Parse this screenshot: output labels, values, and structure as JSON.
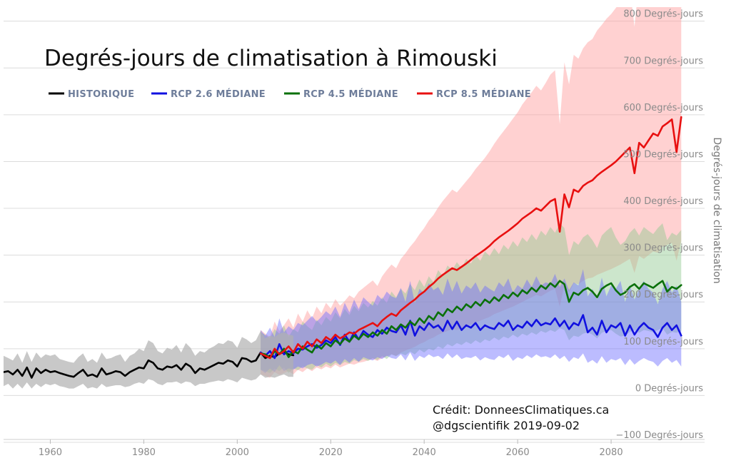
{
  "chart_data": {
    "type": "line",
    "title": "Degrés-jours de climatisation à Rimouski",
    "ylabel": "Degrés-jours de climatisation",
    "xlim": [
      1950,
      2100
    ],
    "ylim": [
      -100,
      830
    ],
    "y_ticks": [
      {
        "value": -100,
        "label": "−100 Degrés-jours"
      },
      {
        "value": 0,
        "label": "0 Degrés-jours"
      },
      {
        "value": 100,
        "label": "100 Degrés-jours"
      },
      {
        "value": 200,
        "label": "200 Degrés-jours"
      },
      {
        "value": 300,
        "label": "300 Degrés-jours"
      },
      {
        "value": 400,
        "label": "400 Degrés-jours"
      },
      {
        "value": 500,
        "label": "500 Degrés-jours"
      },
      {
        "value": 600,
        "label": "600 Degrés-jours"
      },
      {
        "value": 700,
        "label": "700 Degrés-jours"
      },
      {
        "value": 800,
        "label": "800 Degrés-jours"
      }
    ],
    "x_ticks": [
      {
        "value": 1960,
        "label": "1960"
      },
      {
        "value": 1980,
        "label": "1980"
      },
      {
        "value": 2000,
        "label": "2000"
      },
      {
        "value": 2020,
        "label": "2020"
      },
      {
        "value": 2040,
        "label": "2040"
      },
      {
        "value": 2060,
        "label": "2060"
      },
      {
        "value": 2080,
        "label": "2080"
      }
    ],
    "grid": true,
    "legend_position": "top-left",
    "series": [
      {
        "name": "HISTORIQUE",
        "color": "#000000",
        "band_color": "#b0b0b0",
        "x_start": 1950,
        "median": [
          50,
          52,
          45,
          55,
          42,
          60,
          38,
          58,
          48,
          55,
          50,
          52,
          48,
          45,
          42,
          40,
          48,
          55,
          42,
          45,
          40,
          58,
          45,
          48,
          52,
          50,
          42,
          50,
          55,
          60,
          58,
          75,
          70,
          58,
          55,
          62,
          60,
          65,
          55,
          68,
          62,
          48,
          58,
          55,
          60,
          65,
          70,
          68,
          75,
          72,
          62,
          80,
          78,
          72,
          75,
          92,
          80,
          85,
          82,
          90,
          92,
          88,
          86
        ],
        "low": [
          20,
          25,
          15,
          25,
          15,
          28,
          15,
          25,
          18,
          25,
          22,
          25,
          20,
          18,
          15,
          15,
          20,
          25,
          15,
          18,
          15,
          25,
          18,
          20,
          22,
          22,
          18,
          20,
          25,
          28,
          25,
          35,
          32,
          25,
          22,
          28,
          28,
          30,
          25,
          30,
          28,
          20,
          25,
          25,
          28,
          30,
          32,
          30,
          35,
          32,
          28,
          38,
          35,
          32,
          35,
          45,
          38,
          40,
          38,
          42,
          45,
          40,
          40
        ],
        "high": [
          85,
          80,
          75,
          90,
          70,
          95,
          72,
          92,
          80,
          88,
          85,
          88,
          78,
          75,
          72,
          70,
          82,
          90,
          72,
          78,
          70,
          92,
          78,
          80,
          85,
          88,
          72,
          85,
          90,
          100,
          95,
          118,
          112,
          95,
          90,
          102,
          98,
          108,
          92,
          112,
          102,
          85,
          95,
          92,
          100,
          105,
          112,
          110,
          118,
          115,
          102,
          125,
          120,
          112,
          118,
          138,
          122,
          128,
          125,
          132,
          135,
          130,
          128
        ]
      },
      {
        "name": "RCP 2.6 MÉDIANE",
        "color": "#1010e0",
        "band_color": "#6a6aff",
        "x_start": 2005,
        "median": [
          92,
          85,
          95,
          80,
          110,
          88,
          95,
          90,
          100,
          98,
          105,
          110,
          102,
          108,
          118,
          112,
          125,
          108,
          130,
          115,
          135,
          120,
          138,
          130,
          125,
          140,
          132,
          145,
          138,
          135,
          150,
          130,
          160,
          128,
          148,
          140,
          155,
          145,
          150,
          138,
          160,
          142,
          158,
          140,
          150,
          145,
          155,
          140,
          150,
          145,
          142,
          155,
          148,
          160,
          140,
          150,
          145,
          158,
          148,
          162,
          150,
          155,
          152,
          165,
          148,
          160,
          142,
          155,
          150,
          172,
          135,
          145,
          130,
          160,
          135,
          150,
          145,
          155,
          128,
          150,
          130,
          145,
          155,
          145,
          140,
          125,
          145,
          155,
          140,
          150,
          128
        ],
        "low": [
          55,
          48,
          58,
          50,
          65,
          52,
          58,
          55,
          62,
          58,
          65,
          68,
          62,
          66,
          72,
          68,
          75,
          65,
          78,
          70,
          80,
          72,
          82,
          78,
          75,
          82,
          78,
          85,
          80,
          78,
          88,
          75,
          92,
          74,
          85,
          80,
          88,
          82,
          85,
          78,
          90,
          80,
          88,
          78,
          82,
          80,
          85,
          75,
          82,
          78,
          76,
          85,
          80,
          88,
          74,
          82,
          78,
          86,
          80,
          88,
          82,
          84,
          80,
          88,
          78,
          85,
          72,
          82,
          78,
          90,
          70,
          76,
          68,
          84,
          70,
          78,
          75,
          80,
          65,
          78,
          66,
          74,
          80,
          75,
          72,
          62,
          74,
          80,
          70,
          76,
          62
        ],
        "high": [
          140,
          128,
          145,
          125,
          165,
          135,
          148,
          140,
          155,
          150,
          160,
          170,
          158,
          168,
          180,
          172,
          190,
          168,
          198,
          178,
          205,
          185,
          210,
          200,
          192,
          215,
          205,
          222,
          212,
          208,
          230,
          200,
          245,
          198,
          228,
          218,
          240,
          225,
          232,
          215,
          250,
          222,
          245,
          218,
          235,
          228,
          242,
          220,
          235,
          228,
          222,
          242,
          232,
          250,
          220,
          236,
          228,
          248,
          232,
          255,
          235,
          242,
          238,
          260,
          232,
          250,
          225,
          242,
          235,
          270,
          212,
          228,
          205,
          252,
          212,
          235,
          228,
          245,
          200,
          236,
          205,
          228,
          245,
          228,
          220,
          195,
          228,
          245,
          220,
          235,
          200
        ]
      },
      {
        "name": "RCP 4.5 MÉDIANE",
        "color": "#0a700a",
        "band_color": "#8ec88e",
        "x_start": 2005,
        "median": [
          90,
          88,
          80,
          95,
          88,
          100,
          82,
          95,
          90,
          105,
          98,
          92,
          108,
          100,
          112,
          105,
          118,
          110,
          122,
          115,
          128,
          120,
          132,
          125,
          135,
          128,
          140,
          132,
          148,
          140,
          152,
          145,
          158,
          150,
          165,
          155,
          170,
          162,
          178,
          170,
          185,
          178,
          190,
          182,
          195,
          188,
          200,
          192,
          205,
          198,
          210,
          202,
          215,
          208,
          220,
          212,
          225,
          218,
          230,
          222,
          235,
          228,
          240,
          232,
          245,
          238,
          200,
          220,
          215,
          225,
          230,
          222,
          210,
          228,
          235,
          240,
          225,
          215,
          220,
          232,
          238,
          228,
          240,
          235,
          230,
          238,
          245,
          222,
          232,
          228,
          236
        ],
        "low": [
          55,
          52,
          48,
          58,
          52,
          60,
          48,
          58,
          54,
          62,
          58,
          55,
          65,
          60,
          68,
          62,
          70,
          65,
          72,
          68,
          76,
          72,
          78,
          74,
          80,
          76,
          84,
          78,
          88,
          84,
          90,
          86,
          94,
          88,
          98,
          92,
          100,
          96,
          105,
          100,
          110,
          105,
          112,
          108,
          115,
          110,
          118,
          112,
          120,
          116,
          124,
          118,
          126,
          122,
          130,
          124,
          132,
          128,
          135,
          130,
          138,
          134,
          140,
          136,
          144,
          140,
          118,
          128,
          125,
          132,
          135,
          130,
          122,
          134,
          138,
          140,
          132,
          126,
          128,
          136,
          140,
          134,
          140,
          138,
          135,
          140,
          144,
          130,
          136,
          134,
          138
        ],
        "high": [
          135,
          130,
          122,
          142,
          132,
          150,
          125,
          142,
          135,
          158,
          148,
          140,
          162,
          150,
          168,
          158,
          178,
          165,
          185,
          172,
          192,
          180,
          198,
          188,
          202,
          192,
          210,
          198,
          222,
          210,
          228,
          218,
          238,
          225,
          248,
          232,
          255,
          242,
          268,
          255,
          278,
          268,
          285,
          272,
          292,
          282,
          300,
          288,
          308,
          298,
          315,
          302,
          322,
          312,
          330,
          318,
          338,
          328,
          345,
          332,
          352,
          342,
          360,
          348,
          368,
          358,
          300,
          330,
          322,
          338,
          345,
          332,
          315,
          342,
          352,
          360,
          338,
          322,
          330,
          348,
          358,
          342,
          360,
          352,
          345,
          358,
          368,
          332,
          348,
          342,
          354
        ]
      },
      {
        "name": "RCP 8.5 MÉDIANE",
        "color": "#e81010",
        "band_color": "#ff9a9a",
        "x_start": 2005,
        "median": [
          90,
          85,
          80,
          100,
          88,
          95,
          105,
          92,
          110,
          100,
          115,
          105,
          120,
          112,
          125,
          118,
          130,
          122,
          128,
          135,
          132,
          140,
          145,
          150,
          155,
          148,
          160,
          168,
          175,
          170,
          182,
          190,
          198,
          205,
          215,
          222,
          232,
          240,
          250,
          258,
          265,
          272,
          268,
          275,
          282,
          290,
          298,
          305,
          312,
          320,
          330,
          338,
          345,
          352,
          360,
          368,
          378,
          385,
          392,
          400,
          395,
          405,
          415,
          420,
          350,
          430,
          402,
          440,
          435,
          448,
          455,
          460,
          470,
          478,
          485,
          492,
          500,
          510,
          520,
          530,
          475,
          540,
          530,
          545,
          560,
          555,
          575,
          582,
          590,
          520,
          595
        ],
        "low": [
          45,
          42,
          38,
          50,
          44,
          48,
          52,
          45,
          55,
          50,
          58,
          52,
          60,
          56,
          62,
          58,
          66,
          60,
          64,
          68,
          66,
          70,
          72,
          75,
          78,
          74,
          80,
          84,
          88,
          85,
          92,
          96,
          100,
          104,
          110,
          114,
          120,
          124,
          130,
          134,
          138,
          142,
          140,
          144,
          148,
          152,
          156,
          160,
          164,
          168,
          174,
          178,
          182,
          186,
          190,
          195,
          200,
          205,
          210,
          215,
          212,
          218,
          224,
          228,
          190,
          235,
          220,
          240,
          238,
          245,
          250,
          252,
          258,
          262,
          266,
          270,
          275,
          280,
          286,
          292,
          262,
          298,
          292,
          300,
          308,
          305,
          318,
          322,
          326,
          288,
          330
        ],
        "high": [
          140,
          132,
          125,
          158,
          138,
          150,
          165,
          145,
          175,
          158,
          182,
          165,
          190,
          176,
          198,
          186,
          206,
          192,
          202,
          214,
          208,
          222,
          230,
          238,
          246,
          234,
          255,
          268,
          280,
          272,
          292,
          304,
          318,
          330,
          345,
          358,
          374,
          386,
          402,
          416,
          428,
          440,
          434,
          446,
          458,
          470,
          484,
          496,
          508,
          522,
          538,
          552,
          565,
          578,
          592,
          605,
          622,
          635,
          648,
          662,
          652,
          668,
          686,
          695,
          580,
          712,
          665,
          728,
          720,
          742,
          755,
          762,
          780,
          792,
          805,
          815,
          828,
          842,
          858,
          872,
          788,
          888,
          872,
          895,
          915,
          908,
          932,
          942,
          955,
          860,
          962
        ]
      }
    ],
    "credit_line1": "Crédit: DonneesClimatiques.ca",
    "credit_line2": "@dgscientifik 2019-09-02"
  }
}
